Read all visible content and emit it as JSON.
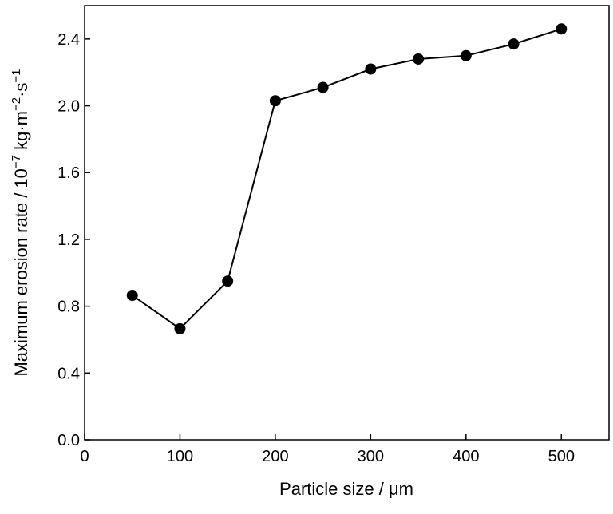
{
  "chart_data": {
    "type": "line",
    "title": "",
    "xlabel": "Particle size / μm",
    "ylabel_main": "Maximum erosion rate / 10",
    "ylabel_exp": "−7",
    "ylabel_unit": " kg·m",
    "ylabel_exp2": "−2",
    "ylabel_unit2": "·s",
    "ylabel_exp3": "−1",
    "xlim": [
      0,
      550
    ],
    "ylim": [
      0.0,
      2.6
    ],
    "x_ticks": [
      0,
      100,
      200,
      300,
      400,
      500
    ],
    "x_tick_labels": [
      "0",
      "100",
      "200",
      "300",
      "400",
      "500"
    ],
    "y_ticks": [
      0.0,
      0.4,
      0.8,
      1.2,
      1.6,
      2.0,
      2.4
    ],
    "y_tick_labels": [
      "0.0",
      "0.4",
      "0.8",
      "1.2",
      "1.6",
      "2.0",
      "2.4"
    ],
    "grid": false,
    "legend": "none",
    "colors": {
      "line": "#000000",
      "marker": "#000000"
    },
    "series": [
      {
        "x": [
          50,
          100,
          150,
          200,
          250,
          300,
          350,
          400,
          450,
          500
        ],
        "values": [
          0.865,
          0.665,
          0.95,
          2.03,
          2.11,
          2.22,
          2.28,
          2.3,
          2.37,
          2.46
        ]
      }
    ]
  }
}
